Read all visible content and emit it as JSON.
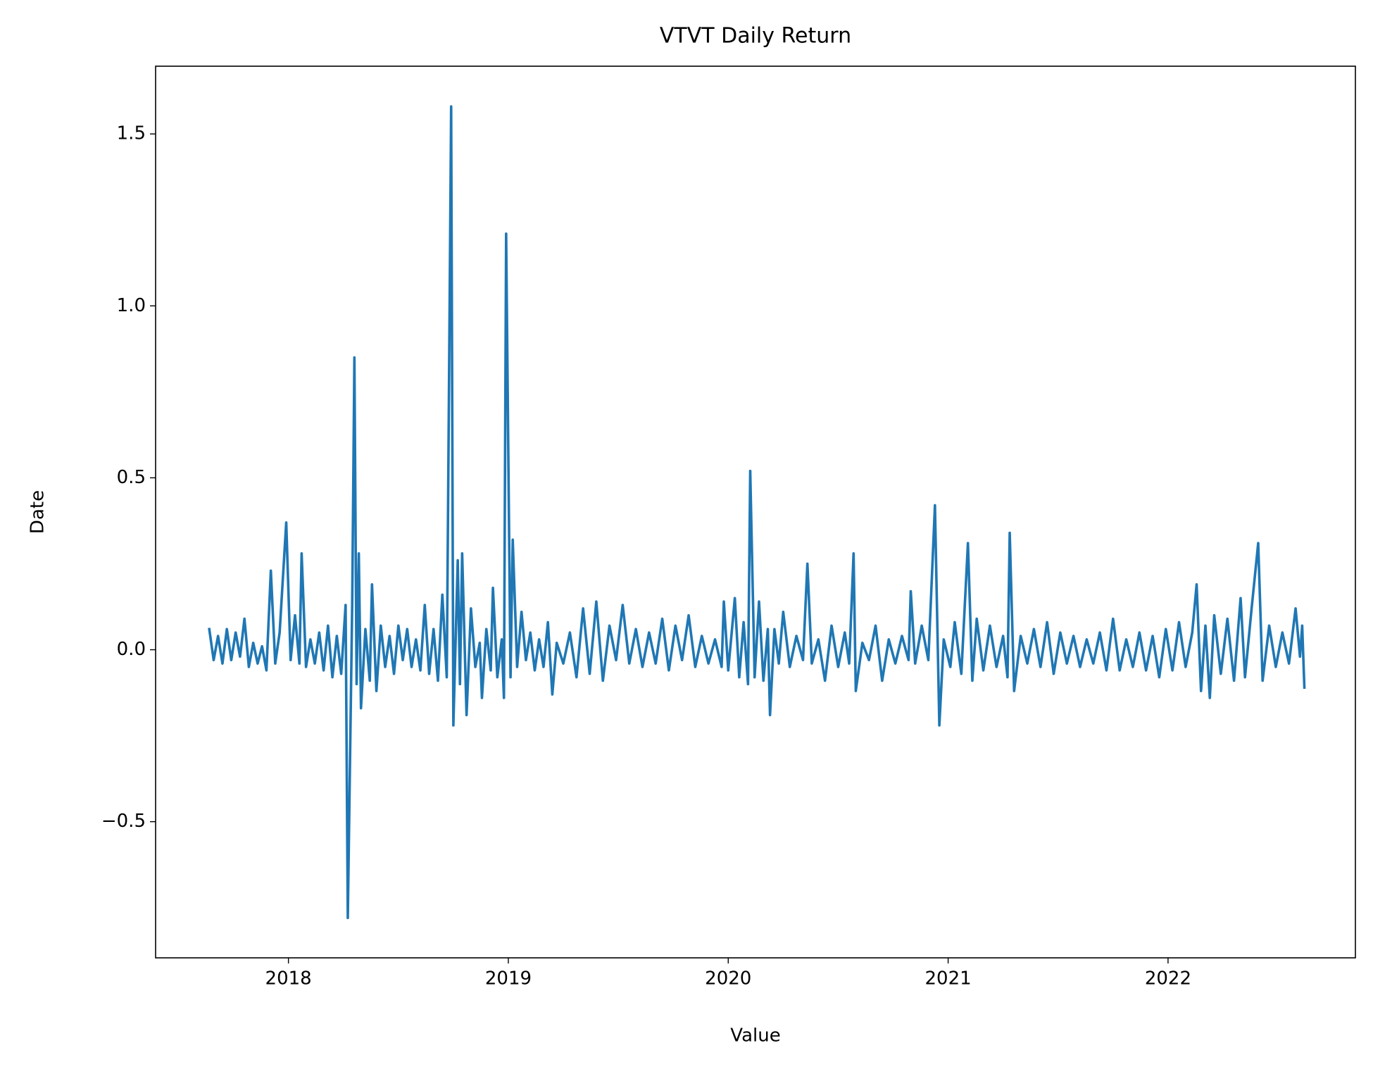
{
  "chart_data": {
    "type": "line",
    "title": "VTVT Daily Return",
    "xlabel": "Value",
    "ylabel": "Date",
    "xlim": [
      2017.396,
      2022.852
    ],
    "ylim": [
      -0.896,
      1.697
    ],
    "xticks": [
      2018,
      2019,
      2020,
      2021,
      2022
    ],
    "yticks": [
      {
        "value": -0.5,
        "label": "−0.5"
      },
      {
        "value": 0,
        "label": "0.0"
      },
      0.5,
      {
        "value": 1.0,
        "label": "1.0"
      },
      1.5
    ],
    "grid": false,
    "series": [
      {
        "name": "VTVT",
        "color": "#1f77b4",
        "x": [
          2017.64,
          2017.66,
          2017.68,
          2017.7,
          2017.72,
          2017.74,
          2017.76,
          2017.78,
          2017.8,
          2017.82,
          2017.84,
          2017.86,
          2017.88,
          2017.9,
          2017.92,
          2017.94,
          2017.96,
          2017.99,
          2018.01,
          2018.03,
          2018.05,
          2018.06,
          2018.08,
          2018.1,
          2018.12,
          2018.14,
          2018.16,
          2018.18,
          2018.2,
          2018.22,
          2018.24,
          2018.26,
          2018.27,
          2018.29,
          2018.3,
          2018.31,
          2018.32,
          2018.33,
          2018.35,
          2018.37,
          2018.38,
          2018.4,
          2018.42,
          2018.44,
          2018.46,
          2018.48,
          2018.5,
          2018.52,
          2018.54,
          2018.56,
          2018.58,
          2018.6,
          2018.62,
          2018.64,
          2018.66,
          2018.68,
          2018.7,
          2018.72,
          2018.74,
          2018.75,
          2018.77,
          2018.78,
          2018.79,
          2018.81,
          2018.83,
          2018.85,
          2018.87,
          2018.88,
          2018.9,
          2018.92,
          2018.93,
          2018.95,
          2018.97,
          2018.98,
          2018.99,
          2019.01,
          2019.02,
          2019.04,
          2019.06,
          2019.08,
          2019.1,
          2019.12,
          2019.14,
          2019.16,
          2019.18,
          2019.2,
          2019.22,
          2019.25,
          2019.28,
          2019.31,
          2019.34,
          2019.37,
          2019.4,
          2019.43,
          2019.46,
          2019.49,
          2019.52,
          2019.55,
          2019.58,
          2019.61,
          2019.64,
          2019.67,
          2019.7,
          2019.73,
          2019.76,
          2019.79,
          2019.82,
          2019.85,
          2019.88,
          2019.91,
          2019.94,
          2019.97,
          2019.98,
          2020.0,
          2020.03,
          2020.05,
          2020.07,
          2020.09,
          2020.1,
          2020.12,
          2020.14,
          2020.16,
          2020.18,
          2020.19,
          2020.21,
          2020.23,
          2020.25,
          2020.28,
          2020.31,
          2020.34,
          2020.36,
          2020.38,
          2020.41,
          2020.44,
          2020.47,
          2020.5,
          2020.53,
          2020.55,
          2020.57,
          2020.58,
          2020.61,
          2020.64,
          2020.67,
          2020.7,
          2020.73,
          2020.76,
          2020.79,
          2020.82,
          2020.83,
          2020.85,
          2020.88,
          2020.91,
          2020.94,
          2020.96,
          2020.98,
          2021.01,
          2021.03,
          2021.06,
          2021.09,
          2021.11,
          2021.13,
          2021.16,
          2021.19,
          2021.22,
          2021.25,
          2021.27,
          2021.28,
          2021.3,
          2021.33,
          2021.36,
          2021.39,
          2021.42,
          2021.45,
          2021.48,
          2021.51,
          2021.54,
          2021.57,
          2021.6,
          2021.63,
          2021.66,
          2021.69,
          2021.72,
          2021.75,
          2021.78,
          2021.81,
          2021.84,
          2021.87,
          2021.9,
          2021.93,
          2021.96,
          2021.99,
          2022.02,
          2022.05,
          2022.08,
          2022.11,
          2022.13,
          2022.15,
          2022.17,
          2022.19,
          2022.21,
          2022.24,
          2022.27,
          2022.3,
          2022.33,
          2022.35,
          2022.38,
          2022.41,
          2022.43,
          2022.46,
          2022.49,
          2022.52,
          2022.55,
          2022.58,
          2022.6,
          2022.61,
          2022.62
        ],
        "values": [
          0.06,
          -0.03,
          0.04,
          -0.04,
          0.06,
          -0.03,
          0.05,
          -0.02,
          0.09,
          -0.05,
          0.02,
          -0.04,
          0.01,
          -0.06,
          0.23,
          -0.04,
          0.05,
          0.37,
          -0.03,
          0.1,
          -0.04,
          0.28,
          -0.05,
          0.03,
          -0.04,
          0.05,
          -0.06,
          0.07,
          -0.08,
          0.04,
          -0.07,
          0.13,
          -0.78,
          0.13,
          0.85,
          -0.1,
          0.28,
          -0.17,
          0.06,
          -0.09,
          0.19,
          -0.12,
          0.07,
          -0.05,
          0.04,
          -0.07,
          0.07,
          -0.03,
          0.06,
          -0.05,
          0.03,
          -0.06,
          0.13,
          -0.07,
          0.06,
          -0.09,
          0.16,
          -0.08,
          1.58,
          -0.22,
          0.26,
          -0.1,
          0.28,
          -0.19,
          0.12,
          -0.05,
          0.02,
          -0.14,
          0.06,
          -0.06,
          0.18,
          -0.08,
          0.03,
          -0.14,
          1.21,
          -0.08,
          0.32,
          -0.05,
          0.11,
          -0.03,
          0.05,
          -0.06,
          0.03,
          -0.05,
          0.08,
          -0.13,
          0.02,
          -0.04,
          0.05,
          -0.08,
          0.12,
          -0.07,
          0.14,
          -0.09,
          0.07,
          -0.03,
          0.13,
          -0.04,
          0.06,
          -0.05,
          0.05,
          -0.04,
          0.09,
          -0.06,
          0.07,
          -0.03,
          0.1,
          -0.05,
          0.04,
          -0.04,
          0.03,
          -0.05,
          0.14,
          -0.06,
          0.15,
          -0.08,
          0.08,
          -0.1,
          0.52,
          -0.08,
          0.14,
          -0.09,
          0.06,
          -0.19,
          0.06,
          -0.04,
          0.11,
          -0.05,
          0.04,
          -0.03,
          0.25,
          -0.04,
          0.03,
          -0.09,
          0.07,
          -0.05,
          0.05,
          -0.04,
          0.28,
          -0.12,
          0.02,
          -0.03,
          0.07,
          -0.09,
          0.03,
          -0.04,
          0.04,
          -0.03,
          0.17,
          -0.04,
          0.07,
          -0.03,
          0.42,
          -0.22,
          0.03,
          -0.05,
          0.08,
          -0.07,
          0.31,
          -0.09,
          0.09,
          -0.06,
          0.07,
          -0.05,
          0.04,
          -0.08,
          0.34,
          -0.12,
          0.04,
          -0.04,
          0.06,
          -0.05,
          0.08,
          -0.07,
          0.05,
          -0.04,
          0.04,
          -0.05,
          0.03,
          -0.04,
          0.05,
          -0.06,
          0.09,
          -0.06,
          0.03,
          -0.05,
          0.05,
          -0.06,
          0.04,
          -0.08,
          0.06,
          -0.06,
          0.08,
          -0.05,
          0.05,
          0.19,
          -0.12,
          0.07,
          -0.14,
          0.1,
          -0.07,
          0.09,
          -0.09,
          0.15,
          -0.08,
          0.12,
          0.31,
          -0.09,
          0.07,
          -0.05,
          0.05,
          -0.04,
          0.12,
          -0.02,
          0.07,
          -0.11
        ]
      }
    ]
  }
}
